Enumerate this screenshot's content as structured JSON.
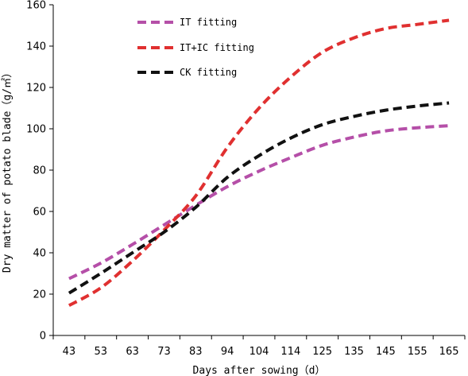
{
  "chart_data": {
    "type": "line",
    "title": "",
    "xlabel": "Days after sowing（d）",
    "ylabel": "Dry matter of potato blade（g/㎡）",
    "categories": [
      "43",
      "53",
      "63",
      "73",
      "83",
      "94",
      "104",
      "114",
      "125",
      "135",
      "145",
      "155",
      "165"
    ],
    "ylim": [
      0,
      160
    ],
    "yticks": [
      0,
      20,
      40,
      60,
      80,
      100,
      120,
      140,
      160
    ],
    "grid": false,
    "legend_position": "top-left",
    "series": [
      {
        "name": "IT fitting",
        "color": "#b54fa8",
        "dash": "dashed",
        "values": [
          27.5,
          35,
          44,
          53.5,
          63,
          72,
          79.5,
          86,
          92,
          96,
          99,
          100.5,
          101.5
        ]
      },
      {
        "name": "IT+IC fitting",
        "color": "#e03030",
        "dash": "dashed",
        "values": [
          14.5,
          23,
          36,
          51,
          67.5,
          91,
          110,
          125,
          137,
          144,
          148.5,
          150.5,
          152.5
        ]
      },
      {
        "name": "CK fitting",
        "color": "#111111",
        "dash": "dashed",
        "values": [
          20.5,
          30,
          40,
          50,
          62,
          76.5,
          87,
          95.5,
          102,
          106,
          109,
          111,
          112.5
        ]
      }
    ]
  }
}
